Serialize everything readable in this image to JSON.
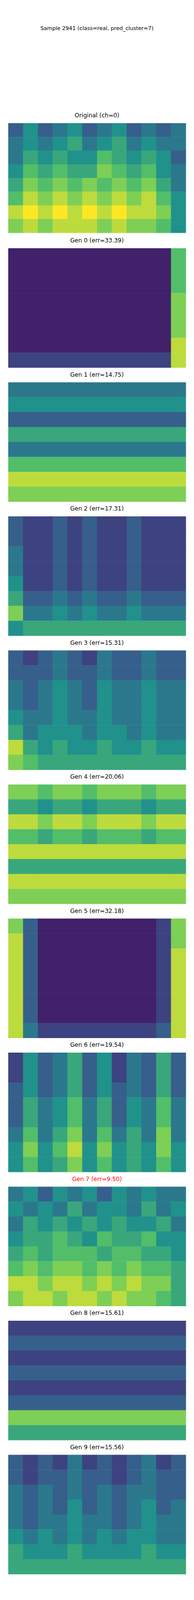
{
  "title": "Sample 2941 (class=real, pred_cluster=7)",
  "chart_data": [
    {
      "type": "heatmap",
      "title": "Original (ch=0)",
      "color": "#000000",
      "tick_labels": false,
      "values": [
        [
          0.3,
          0.5,
          0.3,
          0.4,
          0.5,
          0.3,
          0.4,
          0.5,
          0.3,
          0.4,
          0.3,
          0.4
        ],
        [
          0.4,
          0.5,
          0.4,
          0.5,
          0.6,
          0.4,
          0.5,
          0.6,
          0.4,
          0.5,
          0.4,
          0.4
        ],
        [
          0.4,
          0.6,
          0.5,
          0.6,
          0.5,
          0.5,
          0.7,
          0.6,
          0.5,
          0.6,
          0.5,
          0.3
        ],
        [
          0.5,
          0.7,
          0.6,
          0.7,
          0.6,
          0.6,
          0.8,
          0.7,
          0.6,
          0.7,
          0.5,
          0.4
        ],
        [
          0.6,
          0.8,
          0.7,
          0.8,
          0.7,
          0.8,
          0.7,
          0.8,
          0.7,
          0.8,
          0.6,
          0.4
        ],
        [
          0.7,
          0.9,
          0.8,
          0.9,
          0.8,
          0.9,
          0.8,
          0.9,
          0.8,
          0.9,
          0.7,
          0.5
        ],
        [
          0.9,
          1.0,
          0.9,
          1.0,
          0.9,
          1.0,
          0.9,
          1.0,
          0.9,
          0.9,
          0.8,
          0.5
        ],
        [
          0.8,
          0.9,
          0.8,
          0.9,
          0.9,
          0.9,
          0.8,
          0.9,
          0.8,
          0.8,
          0.7,
          0.5
        ]
      ]
    },
    {
      "type": "heatmap",
      "title": "Gen 0 (err=33.39)",
      "color": "#000000",
      "tick_labels": false,
      "values": [
        [
          0.1,
          0.1,
          0.1,
          0.1,
          0.1,
          0.1,
          0.1,
          0.1,
          0.1,
          0.1,
          0.1,
          0.7
        ],
        [
          0.1,
          0.1,
          0.1,
          0.1,
          0.1,
          0.1,
          0.1,
          0.1,
          0.1,
          0.1,
          0.1,
          0.7
        ],
        [
          0.1,
          0.1,
          0.1,
          0.1,
          0.1,
          0.1,
          0.1,
          0.1,
          0.1,
          0.1,
          0.1,
          0.7
        ],
        [
          0.1,
          0.1,
          0.1,
          0.1,
          0.1,
          0.1,
          0.1,
          0.1,
          0.1,
          0.1,
          0.1,
          0.8
        ],
        [
          0.1,
          0.1,
          0.1,
          0.1,
          0.1,
          0.1,
          0.1,
          0.1,
          0.1,
          0.1,
          0.1,
          0.8
        ],
        [
          0.1,
          0.1,
          0.1,
          0.1,
          0.1,
          0.1,
          0.1,
          0.1,
          0.1,
          0.1,
          0.1,
          0.8
        ],
        [
          0.1,
          0.1,
          0.1,
          0.1,
          0.1,
          0.1,
          0.1,
          0.1,
          0.1,
          0.1,
          0.1,
          0.9
        ],
        [
          0.2,
          0.2,
          0.2,
          0.2,
          0.2,
          0.2,
          0.2,
          0.2,
          0.2,
          0.2,
          0.2,
          0.9
        ]
      ]
    },
    {
      "type": "heatmap",
      "title": "Gen 1 (err=14.75)",
      "color": "#000000",
      "tick_labels": false,
      "values": [
        [
          0.4,
          0.4,
          0.4,
          0.4,
          0.4,
          0.4,
          0.4,
          0.4,
          0.4,
          0.4,
          0.4,
          0.4
        ],
        [
          0.5,
          0.5,
          0.5,
          0.5,
          0.5,
          0.5,
          0.5,
          0.5,
          0.5,
          0.5,
          0.5,
          0.5
        ],
        [
          0.3,
          0.3,
          0.3,
          0.3,
          0.3,
          0.3,
          0.3,
          0.3,
          0.3,
          0.3,
          0.3,
          0.3
        ],
        [
          0.6,
          0.6,
          0.6,
          0.6,
          0.6,
          0.6,
          0.6,
          0.6,
          0.6,
          0.6,
          0.6,
          0.6
        ],
        [
          0.4,
          0.4,
          0.4,
          0.4,
          0.4,
          0.4,
          0.4,
          0.4,
          0.4,
          0.4,
          0.4,
          0.4
        ],
        [
          0.7,
          0.7,
          0.7,
          0.7,
          0.7,
          0.7,
          0.7,
          0.7,
          0.7,
          0.7,
          0.7,
          0.7
        ],
        [
          0.9,
          0.9,
          0.9,
          0.9,
          0.9,
          0.9,
          0.9,
          0.9,
          0.9,
          0.9,
          0.9,
          0.9
        ],
        [
          0.8,
          0.8,
          0.8,
          0.8,
          0.8,
          0.8,
          0.8,
          0.8,
          0.8,
          0.8,
          0.8,
          0.8
        ]
      ]
    },
    {
      "type": "heatmap",
      "title": "Gen 2 (err=17.31)",
      "color": "#000000",
      "tick_labels": false,
      "values": [
        [
          0.3,
          0.2,
          0.2,
          0.3,
          0.2,
          0.3,
          0.2,
          0.2,
          0.3,
          0.2,
          0.2,
          0.2
        ],
        [
          0.3,
          0.2,
          0.2,
          0.3,
          0.2,
          0.3,
          0.2,
          0.2,
          0.3,
          0.2,
          0.2,
          0.2
        ],
        [
          0.4,
          0.2,
          0.2,
          0.3,
          0.2,
          0.3,
          0.2,
          0.2,
          0.3,
          0.2,
          0.2,
          0.2
        ],
        [
          0.4,
          0.2,
          0.2,
          0.3,
          0.2,
          0.3,
          0.2,
          0.2,
          0.3,
          0.2,
          0.2,
          0.2
        ],
        [
          0.5,
          0.2,
          0.2,
          0.3,
          0.2,
          0.3,
          0.2,
          0.2,
          0.3,
          0.2,
          0.2,
          0.2
        ],
        [
          0.6,
          0.3,
          0.3,
          0.4,
          0.3,
          0.4,
          0.3,
          0.3,
          0.4,
          0.3,
          0.3,
          0.3
        ],
        [
          0.8,
          0.4,
          0.4,
          0.5,
          0.4,
          0.5,
          0.4,
          0.4,
          0.5,
          0.4,
          0.4,
          0.4
        ],
        [
          0.5,
          0.6,
          0.6,
          0.6,
          0.6,
          0.6,
          0.6,
          0.6,
          0.6,
          0.6,
          0.6,
          0.6
        ]
      ]
    },
    {
      "type": "heatmap",
      "title": "Gen 3 (err=15.31)",
      "color": "#000000",
      "tick_labels": false,
      "values": [
        [
          0.3,
          0.2,
          0.3,
          0.4,
          0.3,
          0.2,
          0.4,
          0.3,
          0.3,
          0.4,
          0.3,
          0.3
        ],
        [
          0.3,
          0.3,
          0.3,
          0.4,
          0.3,
          0.3,
          0.4,
          0.3,
          0.3,
          0.4,
          0.3,
          0.3
        ],
        [
          0.4,
          0.3,
          0.4,
          0.5,
          0.4,
          0.3,
          0.5,
          0.4,
          0.4,
          0.5,
          0.4,
          0.4
        ],
        [
          0.4,
          0.3,
          0.4,
          0.5,
          0.4,
          0.3,
          0.5,
          0.4,
          0.4,
          0.5,
          0.4,
          0.4
        ],
        [
          0.5,
          0.4,
          0.4,
          0.5,
          0.4,
          0.4,
          0.5,
          0.4,
          0.4,
          0.5,
          0.4,
          0.4
        ],
        [
          0.6,
          0.4,
          0.5,
          0.5,
          0.5,
          0.4,
          0.5,
          0.5,
          0.4,
          0.5,
          0.4,
          0.4
        ],
        [
          0.9,
          0.6,
          0.5,
          0.6,
          0.5,
          0.5,
          0.6,
          0.5,
          0.5,
          0.6,
          0.5,
          0.5
        ],
        [
          0.8,
          0.7,
          0.6,
          0.6,
          0.6,
          0.6,
          0.6,
          0.6,
          0.6,
          0.6,
          0.6,
          0.6
        ]
      ]
    },
    {
      "type": "heatmap",
      "title": "Gen 4 (err=20.06)",
      "color": "#000000",
      "tick_labels": false,
      "values": [
        [
          0.8,
          0.8,
          0.7,
          0.8,
          0.8,
          0.7,
          0.8,
          0.8,
          0.8,
          0.7,
          0.8,
          0.8
        ],
        [
          0.6,
          0.6,
          0.5,
          0.6,
          0.6,
          0.5,
          0.6,
          0.6,
          0.6,
          0.5,
          0.6,
          0.6
        ],
        [
          0.9,
          0.9,
          0.8,
          0.9,
          0.9,
          0.8,
          0.9,
          0.9,
          0.9,
          0.8,
          0.9,
          0.9
        ],
        [
          0.7,
          0.7,
          0.6,
          0.7,
          0.7,
          0.6,
          0.7,
          0.7,
          0.7,
          0.6,
          0.7,
          0.7
        ],
        [
          0.9,
          0.9,
          0.9,
          0.9,
          0.9,
          0.9,
          0.9,
          0.9,
          0.9,
          0.9,
          0.9,
          0.9
        ],
        [
          0.6,
          0.6,
          0.6,
          0.6,
          0.6,
          0.6,
          0.6,
          0.6,
          0.6,
          0.6,
          0.6,
          0.6
        ],
        [
          0.9,
          0.9,
          0.9,
          0.9,
          0.9,
          0.9,
          0.9,
          0.9,
          0.9,
          0.9,
          0.9,
          0.9
        ],
        [
          0.8,
          0.8,
          0.8,
          0.8,
          0.8,
          0.8,
          0.8,
          0.8,
          0.8,
          0.8,
          0.8,
          0.8
        ]
      ]
    },
    {
      "type": "heatmap",
      "title": "Gen 5 (err=32.18)",
      "color": "#000000",
      "tick_labels": false,
      "values": [
        [
          0.8,
          0.3,
          0.1,
          0.1,
          0.1,
          0.1,
          0.1,
          0.1,
          0.1,
          0.1,
          0.2,
          0.8
        ],
        [
          0.9,
          0.3,
          0.1,
          0.1,
          0.1,
          0.1,
          0.1,
          0.1,
          0.1,
          0.1,
          0.2,
          0.8
        ],
        [
          0.9,
          0.3,
          0.1,
          0.1,
          0.1,
          0.1,
          0.1,
          0.1,
          0.1,
          0.1,
          0.2,
          0.9
        ],
        [
          0.9,
          0.3,
          0.1,
          0.1,
          0.1,
          0.1,
          0.1,
          0.1,
          0.1,
          0.1,
          0.2,
          0.9
        ],
        [
          0.9,
          0.3,
          0.1,
          0.1,
          0.1,
          0.1,
          0.1,
          0.1,
          0.1,
          0.1,
          0.2,
          0.9
        ],
        [
          0.9,
          0.3,
          0.1,
          0.1,
          0.1,
          0.1,
          0.1,
          0.1,
          0.1,
          0.1,
          0.2,
          0.9
        ],
        [
          0.9,
          0.3,
          0.1,
          0.1,
          0.1,
          0.1,
          0.1,
          0.1,
          0.1,
          0.1,
          0.2,
          0.9
        ],
        [
          0.9,
          0.4,
          0.2,
          0.2,
          0.2,
          0.2,
          0.2,
          0.2,
          0.2,
          0.2,
          0.3,
          0.9
        ]
      ]
    },
    {
      "type": "heatmap",
      "title": "Gen 6 (err=19.54)",
      "color": "#000000",
      "tick_labels": false,
      "values": [
        [
          0.2,
          0.5,
          0.3,
          0.4,
          0.6,
          0.3,
          0.5,
          0.2,
          0.4,
          0.3,
          0.6,
          0.3
        ],
        [
          0.2,
          0.5,
          0.3,
          0.4,
          0.6,
          0.3,
          0.5,
          0.2,
          0.4,
          0.3,
          0.6,
          0.3
        ],
        [
          0.3,
          0.5,
          0.3,
          0.4,
          0.6,
          0.3,
          0.5,
          0.3,
          0.4,
          0.3,
          0.6,
          0.3
        ],
        [
          0.3,
          0.6,
          0.4,
          0.5,
          0.7,
          0.4,
          0.6,
          0.3,
          0.5,
          0.4,
          0.7,
          0.4
        ],
        [
          0.3,
          0.6,
          0.4,
          0.5,
          0.7,
          0.4,
          0.6,
          0.3,
          0.5,
          0.4,
          0.7,
          0.4
        ],
        [
          0.4,
          0.7,
          0.4,
          0.6,
          0.8,
          0.4,
          0.7,
          0.4,
          0.6,
          0.4,
          0.8,
          0.4
        ],
        [
          0.5,
          0.8,
          0.5,
          0.7,
          0.9,
          0.5,
          0.8,
          0.5,
          0.6,
          0.5,
          0.8,
          0.5
        ],
        [
          0.5,
          0.7,
          0.5,
          0.6,
          0.8,
          0.5,
          0.7,
          0.5,
          0.6,
          0.5,
          0.7,
          0.5
        ]
      ]
    },
    {
      "type": "heatmap",
      "title": "Gen 7 (err=9.50)",
      "color": "#ff0000",
      "tick_labels": false,
      "values": [
        [
          0.4,
          0.5,
          0.3,
          0.5,
          0.4,
          0.5,
          0.3,
          0.5,
          0.4,
          0.5,
          0.4,
          0.4
        ],
        [
          0.5,
          0.4,
          0.5,
          0.4,
          0.6,
          0.4,
          0.5,
          0.5,
          0.4,
          0.6,
          0.4,
          0.5
        ],
        [
          0.4,
          0.6,
          0.5,
          0.6,
          0.5,
          0.6,
          0.5,
          0.6,
          0.5,
          0.5,
          0.6,
          0.4
        ],
        [
          0.5,
          0.6,
          0.6,
          0.7,
          0.6,
          0.5,
          0.7,
          0.6,
          0.6,
          0.7,
          0.5,
          0.5
        ],
        [
          0.6,
          0.7,
          0.6,
          0.7,
          0.7,
          0.7,
          0.6,
          0.7,
          0.7,
          0.6,
          0.6,
          0.5
        ],
        [
          0.7,
          0.8,
          0.7,
          0.8,
          0.8,
          0.7,
          0.8,
          0.7,
          0.8,
          0.7,
          0.7,
          0.6
        ],
        [
          0.9,
          0.9,
          0.8,
          0.9,
          0.9,
          0.8,
          0.9,
          0.8,
          0.9,
          0.8,
          0.8,
          0.6
        ],
        [
          0.8,
          0.9,
          0.9,
          0.8,
          0.9,
          0.9,
          0.8,
          0.9,
          0.8,
          0.8,
          0.7,
          0.6
        ]
      ]
    },
    {
      "type": "heatmap",
      "title": "Gen 8 (err=15.61)",
      "color": "#000000",
      "tick_labels": false,
      "values": [
        [
          0.2,
          0.2,
          0.2,
          0.2,
          0.2,
          0.2,
          0.2,
          0.2,
          0.2,
          0.2,
          0.2,
          0.2
        ],
        [
          0.3,
          0.3,
          0.3,
          0.3,
          0.3,
          0.3,
          0.3,
          0.3,
          0.3,
          0.3,
          0.3,
          0.3
        ],
        [
          0.2,
          0.2,
          0.2,
          0.2,
          0.2,
          0.2,
          0.2,
          0.2,
          0.2,
          0.2,
          0.2,
          0.2
        ],
        [
          0.3,
          0.3,
          0.3,
          0.3,
          0.3,
          0.3,
          0.3,
          0.3,
          0.3,
          0.3,
          0.3,
          0.3
        ],
        [
          0.2,
          0.2,
          0.2,
          0.2,
          0.2,
          0.2,
          0.2,
          0.2,
          0.2,
          0.2,
          0.2,
          0.2
        ],
        [
          0.3,
          0.3,
          0.3,
          0.3,
          0.3,
          0.3,
          0.3,
          0.3,
          0.3,
          0.3,
          0.3,
          0.3
        ],
        [
          0.8,
          0.8,
          0.8,
          0.8,
          0.8,
          0.8,
          0.8,
          0.8,
          0.8,
          0.8,
          0.8,
          0.8
        ],
        [
          0.6,
          0.6,
          0.6,
          0.6,
          0.6,
          0.6,
          0.6,
          0.6,
          0.6,
          0.6,
          0.6,
          0.6
        ]
      ]
    },
    {
      "type": "heatmap",
      "title": "Gen 9 (err=15.56)",
      "color": "#000000",
      "tick_labels": false,
      "values": [
        [
          0.3,
          0.2,
          0.3,
          0.2,
          0.4,
          0.2,
          0.3,
          0.2,
          0.3,
          0.4,
          0.2,
          0.3
        ],
        [
          0.3,
          0.2,
          0.3,
          0.3,
          0.4,
          0.3,
          0.3,
          0.2,
          0.3,
          0.4,
          0.3,
          0.3
        ],
        [
          0.4,
          0.3,
          0.4,
          0.3,
          0.4,
          0.3,
          0.4,
          0.3,
          0.4,
          0.4,
          0.3,
          0.3
        ],
        [
          0.4,
          0.3,
          0.4,
          0.3,
          0.5,
          0.3,
          0.4,
          0.3,
          0.4,
          0.5,
          0.3,
          0.4
        ],
        [
          0.4,
          0.3,
          0.4,
          0.4,
          0.5,
          0.4,
          0.4,
          0.3,
          0.4,
          0.5,
          0.4,
          0.4
        ],
        [
          0.5,
          0.4,
          0.5,
          0.4,
          0.5,
          0.4,
          0.5,
          0.4,
          0.5,
          0.5,
          0.4,
          0.4
        ],
        [
          0.6,
          0.5,
          0.5,
          0.5,
          0.6,
          0.5,
          0.5,
          0.5,
          0.5,
          0.6,
          0.5,
          0.5
        ],
        [
          0.6,
          0.6,
          0.6,
          0.6,
          0.6,
          0.6,
          0.6,
          0.6,
          0.6,
          0.6,
          0.6,
          0.6
        ]
      ]
    }
  ]
}
